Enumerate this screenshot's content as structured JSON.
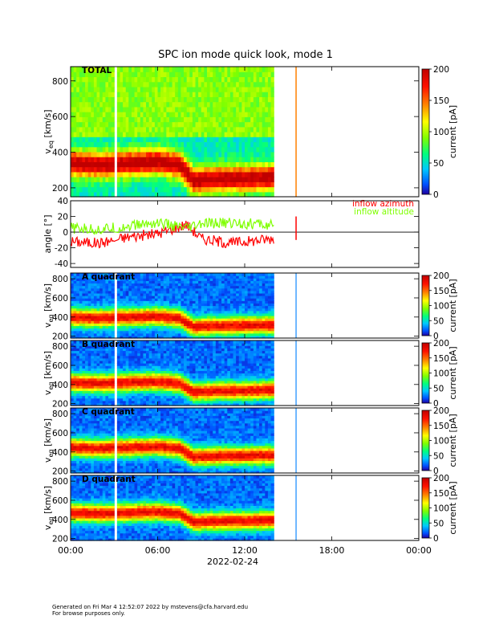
{
  "chart_data": {
    "type": "heatmap",
    "title": "SPC ion mode quick look, mode 1",
    "x_ticks": [
      "00:00",
      "06:00",
      "12:00",
      "18:00",
      "00:00"
    ],
    "x_hours": [
      0,
      6,
      12,
      18,
      24
    ],
    "x_date_label": "2022-02-24",
    "data_coverage_hours": [
      0,
      14.0
    ],
    "data_gaps_hours": [
      [
        3.05,
        3.25
      ]
    ],
    "isolated_spike_hour": 15.5,
    "panels": [
      {
        "kind": "spectrogram",
        "label": "TOTAL",
        "ylabel_main": "v",
        "ylabel_sub": "eq",
        "ylabel_units": "[km/s]",
        "ylim": [
          150,
          880
        ],
        "yticks": [
          200,
          400,
          600,
          800
        ],
        "colorbar_label": "current [pA]",
        "colorbar_range": [
          0,
          200
        ],
        "colorbar_ticks": [
          0,
          50,
          100,
          150,
          200
        ],
        "peak_velocity_track": [
          {
            "hour": 0,
            "v": 340
          },
          {
            "hour": 2,
            "v": 330
          },
          {
            "hour": 4,
            "v": 340
          },
          {
            "hour": 6,
            "v": 350
          },
          {
            "hour": 7.5,
            "v": 330
          },
          {
            "hour": 8.5,
            "v": 240
          },
          {
            "hour": 10,
            "v": 250
          },
          {
            "hour": 12,
            "v": 255
          },
          {
            "hour": 14,
            "v": 260
          }
        ]
      },
      {
        "kind": "line",
        "ylabel_main": "angle [°]",
        "ylim": [
          -45,
          40
        ],
        "yticks": [
          -40,
          -20,
          0,
          20,
          40
        ],
        "zero_line": true,
        "series": [
          {
            "name": "inflow azimuth",
            "color": "#ff0000",
            "points": [
              {
                "hour": 0,
                "v": -12
              },
              {
                "hour": 2,
                "v": -14
              },
              {
                "hour": 4,
                "v": -6
              },
              {
                "hour": 6,
                "v": -2
              },
              {
                "hour": 8,
                "v": 10
              },
              {
                "hour": 9,
                "v": -8
              },
              {
                "hour": 11,
                "v": -14
              },
              {
                "hour": 13,
                "v": -10
              },
              {
                "hour": 14,
                "v": -8
              }
            ]
          },
          {
            "name": "inflow altitude",
            "color": "#7fff00",
            "points": [
              {
                "hour": 0,
                "v": 5
              },
              {
                "hour": 2,
                "v": 3
              },
              {
                "hour": 4,
                "v": 8
              },
              {
                "hour": 6,
                "v": 12
              },
              {
                "hour": 8,
                "v": 4
              },
              {
                "hour": 9,
                "v": 10
              },
              {
                "hour": 11,
                "v": 12
              },
              {
                "hour": 13,
                "v": 10
              },
              {
                "hour": 14,
                "v": 8
              }
            ]
          }
        ]
      },
      {
        "kind": "spectrogram",
        "label": "A quadrant",
        "ylabel_main": "v",
        "ylabel_sub": "eq",
        "ylabel_units": "[km/s]",
        "ylim": [
          180,
          860
        ],
        "yticks": [
          200,
          400,
          600,
          800
        ],
        "colorbar_label": "current [pA]",
        "colorbar_range": [
          0,
          200
        ],
        "colorbar_ticks": [
          0,
          50,
          100,
          150,
          200
        ]
      },
      {
        "kind": "spectrogram",
        "label": "B quadrant",
        "ylabel_main": "v",
        "ylabel_sub": "eq",
        "ylabel_units": "[km/s]",
        "ylim": [
          180,
          860
        ],
        "yticks": [
          200,
          400,
          600,
          800
        ],
        "colorbar_label": "current [pA]",
        "colorbar_range": [
          0,
          200
        ],
        "colorbar_ticks": [
          0,
          50,
          100,
          150,
          200
        ]
      },
      {
        "kind": "spectrogram",
        "label": "C quadrant",
        "ylabel_main": "v",
        "ylabel_sub": "eq",
        "ylabel_units": "[km/s]",
        "ylim": [
          180,
          860
        ],
        "yticks": [
          200,
          400,
          600,
          800
        ],
        "colorbar_label": "current [pA]",
        "colorbar_range": [
          0,
          200
        ],
        "colorbar_ticks": [
          0,
          50,
          100,
          150,
          200
        ]
      },
      {
        "kind": "spectrogram",
        "label": "D quadrant",
        "ylabel_main": "v",
        "ylabel_sub": "eq",
        "ylabel_units": "[km/s]",
        "ylim": [
          180,
          860
        ],
        "yticks": [
          200,
          400,
          600,
          800
        ],
        "colorbar_label": "current [pA]",
        "colorbar_range": [
          0,
          200
        ],
        "colorbar_ticks": [
          0,
          50,
          100,
          150,
          200
        ]
      }
    ]
  },
  "footer": {
    "line1": "Generated on Fri Mar  4 12:52:07 2022 by mstevens@cfa.harvard.edu",
    "line2": "For browse purposes only."
  }
}
